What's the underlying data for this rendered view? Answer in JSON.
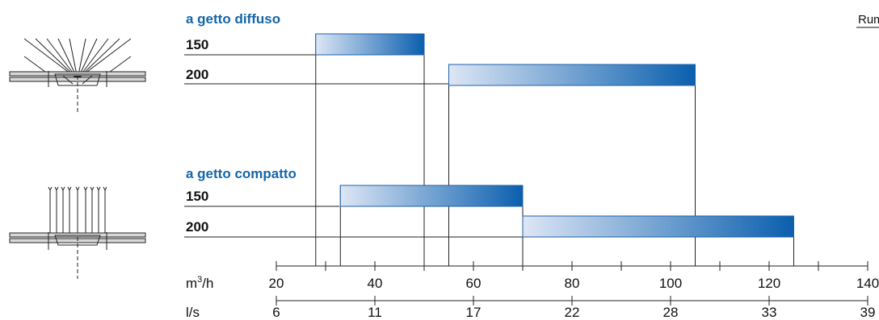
{
  "chart_data": {
    "type": "bar",
    "orientation": "horizontal-range",
    "corner_label": "Rum",
    "groups": [
      {
        "title": "a getto diffuso",
        "icon": "diffuse-jet-diffuser-icon",
        "rows": [
          {
            "label": "150",
            "min": 28,
            "max": 50
          },
          {
            "label": "200",
            "min": 55,
            "max": 105
          }
        ]
      },
      {
        "title": "a getto compatto",
        "icon": "compact-jet-diffuser-icon",
        "rows": [
          {
            "label": "150",
            "min": 33,
            "max": 70
          },
          {
            "label": "200",
            "min": 70,
            "max": 125
          }
        ]
      }
    ],
    "axes": [
      {
        "unit": "m³/h",
        "unit_base": "m",
        "unit_sup": "3",
        "unit_tail": "/h",
        "range": [
          20,
          140
        ],
        "major_ticks": [
          20,
          40,
          60,
          80,
          100,
          120,
          140
        ],
        "minor_step": 10
      },
      {
        "unit": "l/s",
        "tick_values_m3h": [
          20,
          40,
          60,
          80,
          100,
          120,
          140
        ],
        "tick_labels": [
          "6",
          "11",
          "17",
          "22",
          "28",
          "33",
          "39"
        ]
      }
    ],
    "bar_gradient": [
      "#dde6f5",
      "#0a5fae"
    ],
    "bar_border": "#1f5fa8"
  }
}
